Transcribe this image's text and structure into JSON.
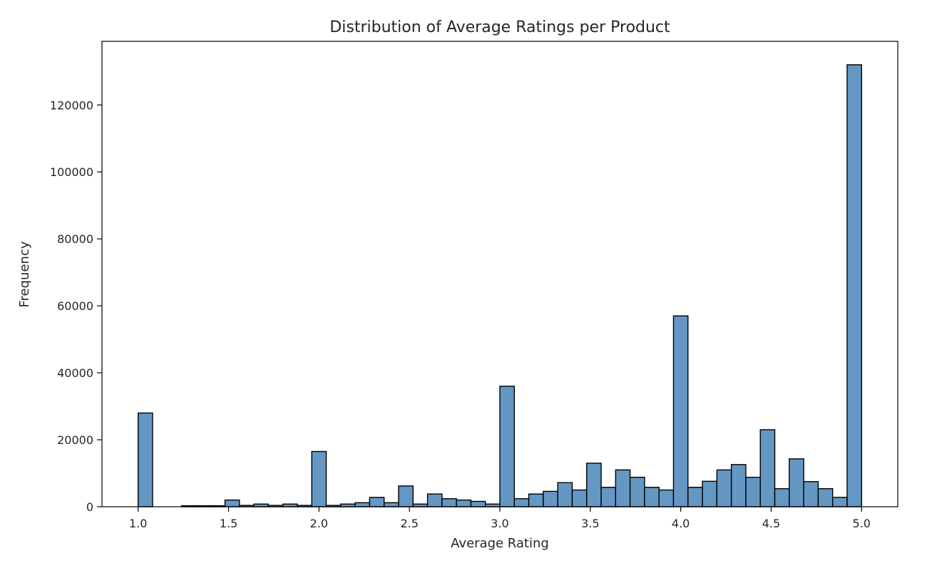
{
  "chart_data": {
    "type": "bar",
    "title": "Distribution of Average Ratings per Product",
    "xlabel": "Average Rating",
    "ylabel": "Frequency",
    "xlim": [
      0.8,
      5.2
    ],
    "ylim": [
      0,
      139000
    ],
    "x_ticks": [
      1.0,
      1.5,
      2.0,
      2.5,
      3.0,
      3.5,
      4.0,
      4.5,
      5.0
    ],
    "x_tick_labels": [
      "1.0",
      "1.5",
      "2.0",
      "2.5",
      "3.0",
      "3.5",
      "4.0",
      "4.5",
      "5.0"
    ],
    "y_ticks": [
      0,
      20000,
      40000,
      60000,
      80000,
      100000,
      120000
    ],
    "y_tick_labels": [
      "0",
      "20000",
      "40000",
      "60000",
      "80000",
      "100000",
      "120000"
    ],
    "bin_edges": [
      1.0,
      1.08,
      1.16,
      1.24,
      1.32,
      1.4,
      1.48,
      1.56,
      1.64,
      1.72,
      1.8,
      1.88,
      1.96,
      2.04,
      2.12,
      2.2,
      2.28,
      2.36,
      2.44,
      2.52,
      2.6,
      2.68,
      2.76,
      2.84,
      2.92,
      3.0,
      3.08,
      3.16,
      3.24,
      3.32,
      3.4,
      3.48,
      3.56,
      3.64,
      3.72,
      3.8,
      3.88,
      3.96,
      4.04,
      4.12,
      4.2,
      4.28,
      4.36,
      4.44,
      4.52,
      4.6,
      4.68,
      4.76,
      4.84,
      4.92,
      5.0
    ],
    "values": [
      28000,
      0,
      0,
      300,
      300,
      300,
      2000,
      400,
      800,
      400,
      800,
      400,
      16500,
      400,
      800,
      1200,
      2800,
      1200,
      6200,
      800,
      3800,
      2400,
      2000,
      1600,
      800,
      36000,
      2400,
      3800,
      4600,
      7200,
      5000,
      13000,
      5800,
      11000,
      8800,
      5800,
      5000,
      57000,
      5800,
      7600,
      11000,
      12600,
      8800,
      23000,
      5400,
      14300,
      7500,
      5400,
      2800,
      132000
    ],
    "colors": {
      "bar_fill": "#6497C3",
      "bar_edge": "#000000",
      "axis": "#000000",
      "text": "#262626"
    },
    "grid": false
  }
}
